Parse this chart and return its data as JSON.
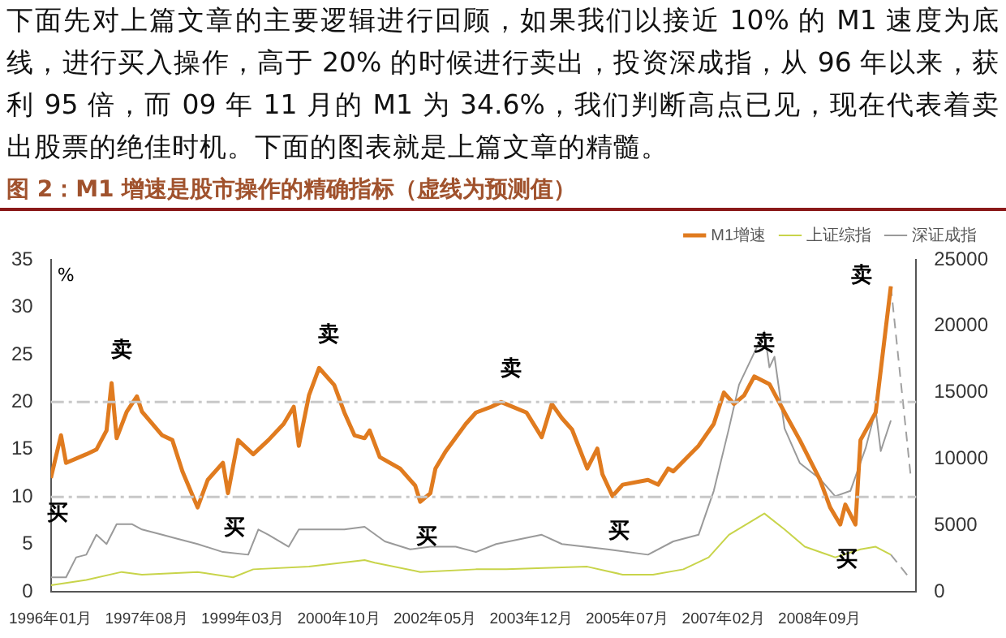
{
  "chart_data": {
    "type": "line",
    "title": "图 2：M1 增速是股市操作的精确指标（虚线为预测值）",
    "ylabel": "%",
    "xlim": [
      "1996-01",
      "2010-04"
    ],
    "xticks": [
      {
        "value": "1996-01",
        "label": "1996年01月"
      },
      {
        "value": "1997-08",
        "label": "1997年08月"
      },
      {
        "value": "1999-03",
        "label": "1999年03月"
      },
      {
        "value": "2000-10",
        "label": "2000年10月"
      },
      {
        "value": "2002-05",
        "label": "2002年05月"
      },
      {
        "value": "2003-12",
        "label": "2003年12月"
      },
      {
        "value": "2005-07",
        "label": "2005年07月"
      },
      {
        "value": "2007-02",
        "label": "2007年02月"
      },
      {
        "value": "2008-09",
        "label": "2008年09月"
      }
    ],
    "ylim": [
      0,
      35
    ],
    "yticks": [
      0,
      5,
      10,
      15,
      20,
      25,
      30,
      35
    ],
    "y2lim": [
      0,
      25000
    ],
    "y2ticks": [
      0,
      5000,
      10000,
      15000,
      20000,
      25000
    ],
    "grid": false,
    "legend": "top right",
    "marker": "none",
    "series": [
      {
        "name": "M1增速",
        "color": "#e07b1f",
        "x": [
          "1996-01",
          "1996-03",
          "1996-04",
          "1996-08",
          "1996-10",
          "1996-12",
          "1997-01",
          "1997-02",
          "1997-04",
          "1997-06",
          "1997-07",
          "1997-11",
          "1998-01",
          "1998-03",
          "1998-06",
          "1998-08",
          "1998-11",
          "1998-12",
          "1999-02",
          "1999-05",
          "1999-08",
          "1999-11",
          "2000-01",
          "2000-02",
          "2000-04",
          "2000-06",
          "2000-09",
          "2000-11",
          "2001-01",
          "2001-03",
          "2001-04",
          "2001-06",
          "2001-10",
          "2002-01",
          "2002-02",
          "2002-04",
          "2002-05",
          "2002-07",
          "2002-11",
          "2003-01",
          "2003-04",
          "2003-06",
          "2003-11",
          "2004-02",
          "2004-04",
          "2004-06",
          "2004-08",
          "2004-11",
          "2005-01",
          "2005-02",
          "2005-04",
          "2005-06",
          "2005-11",
          "2006-01",
          "2006-03",
          "2006-04",
          "2006-09",
          "2006-12",
          "2007-02",
          "2007-04",
          "2007-06",
          "2007-08",
          "2007-11",
          "2008-02",
          "2008-05",
          "2008-09",
          "2008-11",
          "2009-01",
          "2009-02",
          "2009-04",
          "2009-05",
          "2009-08",
          "2009-10",
          "2009-11"
        ],
        "values": [
          12,
          16.5,
          13.6,
          14.5,
          15,
          17,
          22,
          16.2,
          19,
          20.6,
          19,
          16.5,
          16,
          12.7,
          8.9,
          11.8,
          13.6,
          10.4,
          16,
          14.5,
          16,
          17.7,
          19.5,
          15.4,
          20.7,
          23.6,
          21.8,
          18.9,
          16.5,
          16.2,
          17,
          14.2,
          13,
          11.2,
          9.5,
          10.4,
          13,
          14.8,
          17.7,
          18.9,
          19.5,
          20,
          18.9,
          16.3,
          19.8,
          18.3,
          17.1,
          13,
          15.1,
          12.4,
          10.1,
          11.3,
          11.8,
          11.3,
          13,
          12.7,
          15.4,
          17.7,
          21,
          19.8,
          20.7,
          22.7,
          21.9,
          18.9,
          16,
          11.8,
          8.9,
          7.1,
          9.2,
          7.1,
          16,
          18.9,
          27.8,
          32.2
        ]
      },
      {
        "name": "上证综指",
        "color": "#c8d44a",
        "axis": "y2",
        "x": [
          "1996-01",
          "1996-08",
          "1997-03",
          "1997-07",
          "1998-06",
          "1999-01",
          "1999-05",
          "2000-04",
          "2001-03",
          "2001-05",
          "2002-02",
          "2003-01",
          "2003-07",
          "2004-11",
          "2005-06",
          "2005-12",
          "2006-06",
          "2006-11",
          "2007-03",
          "2007-10",
          "2008-02",
          "2008-06",
          "2008-12",
          "2009-05",
          "2009-08",
          "2009-11"
        ],
        "values": [
          500,
          900,
          1500,
          1300,
          1500,
          1100,
          1700,
          1900,
          2400,
          2200,
          1500,
          1700,
          1700,
          1900,
          1300,
          1300,
          1700,
          2600,
          4300,
          5900,
          4700,
          3400,
          2600,
          3200,
          3400,
          2800
        ]
      },
      {
        "name": "深证成指",
        "color": "#9a9a9a",
        "axis": "y2",
        "x": [
          "1996-01",
          "1996-04",
          "1996-06",
          "1996-08",
          "1996-10",
          "1996-12",
          "1997-02",
          "1997-05",
          "1997-07",
          "1997-11",
          "1998-02",
          "1998-06",
          "1998-11",
          "1999-04",
          "1999-06",
          "1999-08",
          "1999-12",
          "2000-02",
          "2000-06",
          "2000-11",
          "2001-03",
          "2001-07",
          "2001-12",
          "2002-04",
          "2002-09",
          "2003-01",
          "2003-05",
          "2004-02",
          "2004-06",
          "2005-03",
          "2005-11",
          "2006-04",
          "2006-09",
          "2006-12",
          "2007-03",
          "2007-05",
          "2007-10",
          "2007-11",
          "2007-12",
          "2008-02",
          "2008-05",
          "2008-09",
          "2008-12",
          "2009-03",
          "2009-06",
          "2009-08",
          "2009-09",
          "2009-11"
        ],
        "values": [
          1100,
          1100,
          2600,
          2800,
          4300,
          3600,
          5100,
          5100,
          4700,
          4300,
          4000,
          3600,
          3000,
          2800,
          4700,
          4300,
          3400,
          4700,
          4700,
          4700,
          4900,
          3800,
          3200,
          3400,
          3400,
          3000,
          3600,
          4300,
          3600,
          3200,
          2800,
          3800,
          4300,
          7600,
          12300,
          15600,
          19600,
          16900,
          17700,
          12300,
          9700,
          8500,
          7200,
          7600,
          10800,
          13700,
          10600,
          12900
        ]
      },
      {
        "color": "#a0a0a0",
        "line_style": "dashed",
        "x": [
          "2009-11",
          "2010-03"
        ],
        "values": [
          32.2,
          11.8
        ]
      },
      {
        "color": "#a0a0a0",
        "line_style": "dashed",
        "axis": "y2",
        "x": [
          "2009-11",
          "2010-03"
        ],
        "values": [
          2800,
          900
        ]
      }
    ],
    "ref_lines": [
      {
        "axis": "y",
        "value": 20,
        "color": "#c8c8c8",
        "line_style": "dashdot"
      },
      {
        "axis": "y",
        "value": 10,
        "color": "#c8c8c8",
        "line_style": "dashdot"
      }
    ],
    "annotations": [
      "下面先对上篇文章的主要逻辑进行回顾，如果我们以接近 10% 的 M1 速度为底线，进行买入操作，高于 20% 的时候进行卖出，投资深成指，从 96 年以来，获利 95 倍，而 09 年 11 月的 M1 为 34.6%，我们判断高点已见，现在代表着卖出股票的绝佳时机。下面的图表就是上篇文章的精髓。",
      {
        "text": "卖",
        "x": "1997-01",
        "y": 22
      },
      {
        "text": "买",
        "x": "1996-01",
        "y": 12
      },
      {
        "text": "买",
        "x": "1998-12",
        "y": 10.4
      },
      {
        "text": "卖",
        "x": "2000-06",
        "y": 23.6
      },
      {
        "text": "买",
        "x": "2002-02",
        "y": 9.5
      },
      {
        "text": "卖",
        "x": "2003-06",
        "y": 20
      },
      {
        "text": "买",
        "x": "2005-04",
        "y": 10.1
      },
      {
        "text": "卖",
        "x": "2007-08",
        "y": 22.7
      },
      {
        "text": "买",
        "x": "2009-01",
        "y": 7.1
      },
      {
        "text": "卖",
        "x": "2009-11",
        "y": 32.2
      }
    ]
  }
}
